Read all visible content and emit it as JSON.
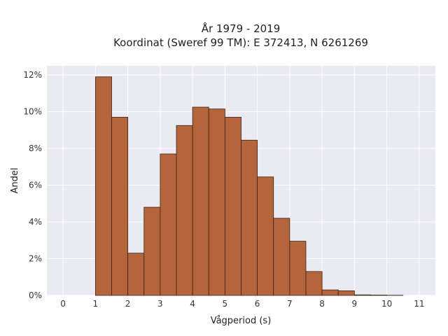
{
  "chart_data": {
    "type": "bar",
    "title_line1": "År 1979 - 2019",
    "title_line2": "Koordinat (Sweref 99 TM): E 372413, N 6261269",
    "xlabel": "Vågperiod (s)",
    "ylabel": "Andel",
    "xlim": [
      -0.5,
      11.5
    ],
    "ylim": [
      0,
      0.125
    ],
    "xticks": [
      0,
      1,
      2,
      3,
      4,
      5,
      6,
      7,
      8,
      9,
      10,
      11
    ],
    "xtick_labels": [
      "0",
      "1",
      "2",
      "3",
      "4",
      "5",
      "6",
      "7",
      "8",
      "9",
      "10",
      "11"
    ],
    "yticks": [
      0,
      0.02,
      0.04,
      0.06,
      0.08,
      0.1,
      0.12
    ],
    "ytick_labels": [
      "0%",
      "2%",
      "4%",
      "6%",
      "8%",
      "10%",
      "12%"
    ],
    "bin_width": 0.5,
    "bins": [
      {
        "x0": 1.0,
        "value": 0.119
      },
      {
        "x0": 1.5,
        "value": 0.097
      },
      {
        "x0": 2.0,
        "value": 0.023
      },
      {
        "x0": 2.5,
        "value": 0.048
      },
      {
        "x0": 3.0,
        "value": 0.077
      },
      {
        "x0": 3.5,
        "value": 0.0925
      },
      {
        "x0": 4.0,
        "value": 0.1025
      },
      {
        "x0": 4.5,
        "value": 0.1015
      },
      {
        "x0": 5.0,
        "value": 0.097
      },
      {
        "x0": 5.5,
        "value": 0.0845
      },
      {
        "x0": 6.0,
        "value": 0.0645
      },
      {
        "x0": 6.5,
        "value": 0.042
      },
      {
        "x0": 7.0,
        "value": 0.0295
      },
      {
        "x0": 7.5,
        "value": 0.013
      },
      {
        "x0": 8.0,
        "value": 0.003
      },
      {
        "x0": 8.5,
        "value": 0.0025
      },
      {
        "x0": 9.0,
        "value": 0.0003
      },
      {
        "x0": 9.5,
        "value": 0.0002
      },
      {
        "x0": 10.0,
        "value": 0.0001
      }
    ],
    "grid": true,
    "colors": {
      "bar_fill": "#b5653b",
      "bar_stroke": "#3a2416",
      "plot_background": "#eaeaf2",
      "grid": "#ffffff"
    }
  }
}
